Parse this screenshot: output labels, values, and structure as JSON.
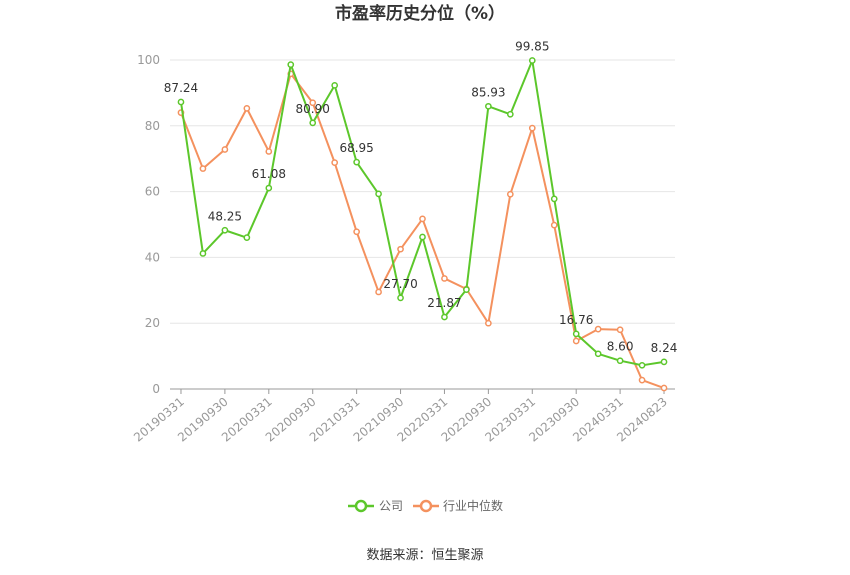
{
  "chart_data": {
    "type": "line",
    "title": "市盈率历史分位（%）",
    "xlabel": "",
    "ylabel": "",
    "ylim": [
      0,
      100
    ],
    "yticks": [
      0,
      20,
      40,
      60,
      80,
      100
    ],
    "grid": true,
    "legend_position": "bottom",
    "x": [
      "20190331",
      "20190630",
      "20190930",
      "20191231",
      "20200331",
      "20200630",
      "20200930",
      "20201231",
      "20210331",
      "20210630",
      "20210930",
      "20211231",
      "20220331",
      "20220630",
      "20220930",
      "20221231",
      "20230331",
      "20230630",
      "20230930",
      "20231231",
      "20240331",
      "20240630",
      "20240823"
    ],
    "x_tick_labels": [
      "20190331",
      "20190930",
      "20200331",
      "20200930",
      "20210331",
      "20210930",
      "20220331",
      "20220930",
      "20230331",
      "20230930",
      "20240331",
      "20240823"
    ],
    "series": [
      {
        "name": "公司",
        "color": "#5cc72b",
        "values": [
          87.24,
          41.2,
          48.25,
          46.0,
          61.08,
          98.6,
          80.9,
          92.3,
          68.95,
          59.3,
          27.7,
          46.2,
          21.87,
          30.2,
          85.93,
          83.5,
          99.85,
          57.8,
          16.76,
          10.7,
          8.6,
          7.2,
          8.24
        ],
        "data_labels": {
          "0": "87.24",
          "2": "48.25",
          "4": "61.08",
          "6": "80.90",
          "8": "68.95",
          "10": "27.70",
          "12": "21.87",
          "14": "85.93",
          "16": "99.85",
          "18": "16.76",
          "20": "8.60",
          "22": "8.24"
        }
      },
      {
        "name": "行业中位数",
        "color": "#f4915e",
        "values": [
          84.0,
          67.0,
          72.8,
          85.3,
          72.2,
          95.8,
          87.0,
          68.8,
          47.8,
          29.5,
          42.5,
          51.7,
          33.6,
          30.4,
          20.0,
          59.2,
          79.3,
          49.8,
          14.6,
          18.2,
          18.0,
          2.7,
          0.3
        ]
      }
    ]
  },
  "legend": {
    "items": [
      "公司",
      "行业中位数"
    ]
  },
  "footer": {
    "source": "数据来源：恒生聚源"
  }
}
